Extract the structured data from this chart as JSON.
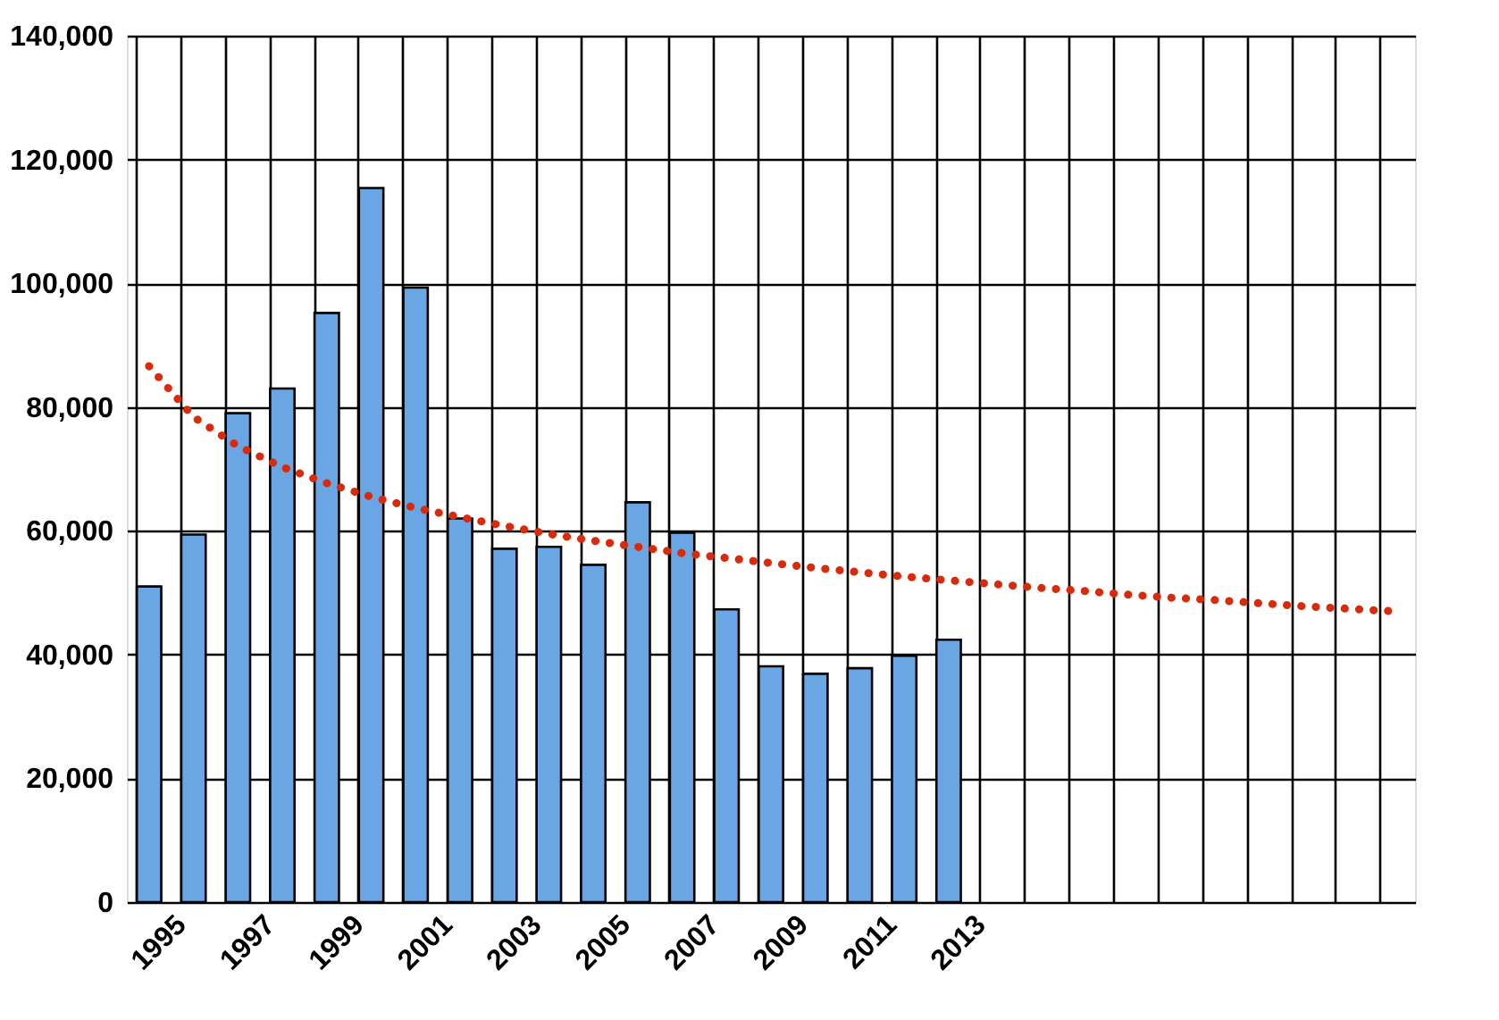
{
  "chart_data": {
    "type": "bar",
    "categories": [
      "1995",
      null,
      "1997",
      null,
      "1999",
      null,
      "2001",
      null,
      "2003",
      null,
      "2005",
      null,
      "2007",
      null,
      "2009",
      null,
      "2011",
      null,
      "2013",
      null,
      null,
      null,
      null,
      null,
      null,
      null,
      null,
      null,
      null
    ],
    "series": [
      {
        "color": "#6aa6e4",
        "values": [
          51000,
          59400,
          79000,
          83000,
          95200,
          115400,
          99300,
          62000,
          57100,
          57400,
          54500,
          64600,
          59700,
          47300,
          38100,
          36900,
          37800,
          39800,
          42400,
          null,
          null,
          null,
          null,
          null,
          null,
          null,
          null,
          null,
          null
        ]
      },
      {
        "type": "line",
        "color": "#d92b0c",
        "line_style": "dotted",
        "values": [
          86600,
          78400,
          73700,
          70300,
          67700,
          65500,
          63700,
          62200,
          60800,
          59500,
          58400,
          57400,
          56400,
          55600,
          54800,
          54000,
          53300,
          52600,
          52000,
          51400,
          50800,
          50300,
          49700,
          49200,
          48800,
          48300,
          47800,
          47400,
          47000
        ]
      }
    ],
    "ylim": [
      0,
      140000
    ],
    "yticks": [
      0,
      {
        "value": 20000,
        "label": "20,000"
      },
      {
        "value": 40000,
        "label": "40,000"
      },
      {
        "value": 60000,
        "label": "60,000"
      },
      {
        "value": 80000,
        "label": "80,000"
      },
      {
        "value": 100000,
        "label": "100,000"
      },
      {
        "value": 120000,
        "label": "120,000"
      },
      {
        "value": 140000,
        "label": "140,000"
      }
    ],
    "grid": true,
    "legend": false
  }
}
